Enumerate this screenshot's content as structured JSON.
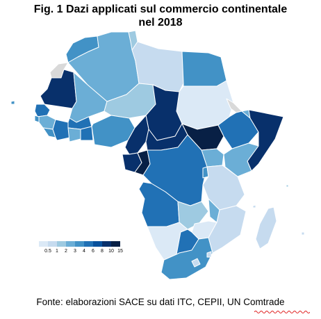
{
  "title_line1": "Fig. 1 Dazi applicati sul commercio continentale",
  "title_line2": "nel 2018",
  "legend": {
    "ticks": [
      "0.5",
      "1",
      "2",
      "3",
      "4",
      "6",
      "8",
      "10",
      "15"
    ],
    "colors": [
      "#dbe9f6",
      "#c6dbef",
      "#9ecae1",
      "#6baed6",
      "#4292c6",
      "#2171b5",
      "#08519c",
      "#08306b",
      "#082045"
    ]
  },
  "no_data_color": "#d9d9d9",
  "source": "Fonte: elaborazioni SACE su dati ITC, CEPII, UN Comtrade"
}
